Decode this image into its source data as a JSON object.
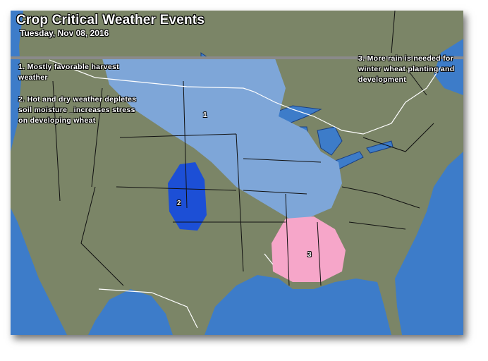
{
  "title": "Crop Critical Weather Events",
  "date": "Tuesday, Nov 08, 2016",
  "notes": [
    {
      "text": "1. Mostly favorable harvest weather"
    },
    {
      "text": "2. Hot and dry weather depletes soil moisture _increases stress on developing wheat"
    },
    {
      "text": "3. More rain is needed for winter wheat planting and development"
    }
  ],
  "regions": [
    {
      "label": "1",
      "color": "#7ea6d8"
    },
    {
      "label": "2",
      "color": "#1c4fd6"
    },
    {
      "label": "3",
      "color": "#f6a6c9"
    }
  ],
  "colors": {
    "land": "#7b8567",
    "water": "#3d7cc9",
    "border": "#ffffff",
    "state_lines": "#111111"
  }
}
